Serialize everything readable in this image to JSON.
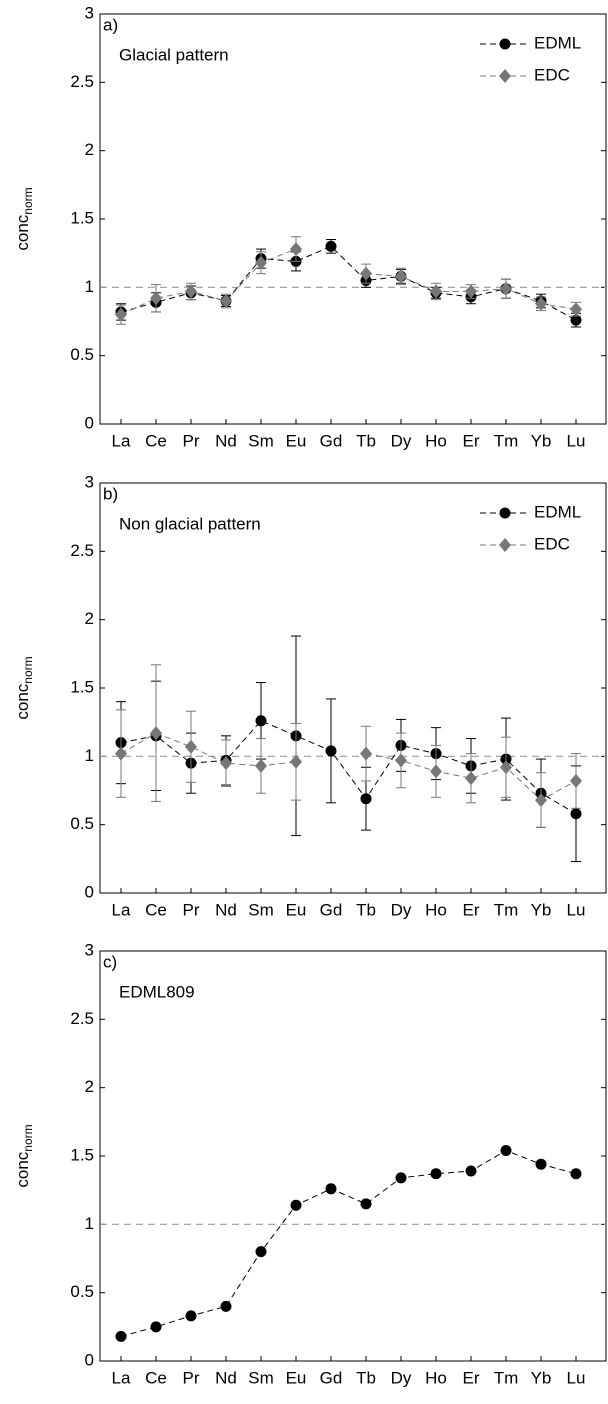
{
  "chart_data": [
    {
      "type": "line",
      "panel_label": "a)",
      "title": "Glacial pattern",
      "ylabel": "conc",
      "ylabel_sub": "norm",
      "categories": [
        "La",
        "Ce",
        "Pr",
        "Nd",
        "Sm",
        "Eu",
        "Gd",
        "Tb",
        "Dy",
        "Ho",
        "Er",
        "Tm",
        "Yb",
        "Lu"
      ],
      "ylim": [
        0,
        3
      ],
      "yticks": [
        0,
        0.5,
        1,
        1.5,
        2,
        2.5,
        3
      ],
      "reference_line": 1,
      "legend": "upper right",
      "series": [
        {
          "name": "EDML",
          "color": "#000000",
          "marker": "circle",
          "values": [
            0.82,
            0.89,
            0.96,
            0.9,
            1.21,
            1.19,
            1.3,
            1.05,
            1.08,
            0.96,
            0.93,
            0.99,
            0.9,
            0.76
          ],
          "errors": [
            0.06,
            0.07,
            0.05,
            0.04,
            0.07,
            0.07,
            0.05,
            0.05,
            0.05,
            0.04,
            0.05,
            0.07,
            0.05,
            0.05
          ]
        },
        {
          "name": "EDC",
          "color": "#777777",
          "marker": "diamond",
          "values": [
            0.8,
            0.92,
            0.97,
            0.9,
            1.18,
            1.28,
            null,
            1.1,
            1.08,
            0.97,
            0.97,
            0.99,
            0.88,
            0.84
          ],
          "errors": [
            0.07,
            0.1,
            0.06,
            0.05,
            0.08,
            0.09,
            null,
            0.07,
            0.06,
            0.06,
            0.05,
            0.07,
            0.05,
            0.05
          ]
        }
      ]
    },
    {
      "type": "line",
      "panel_label": "b)",
      "title": "Non glacial pattern",
      "ylabel": "conc",
      "ylabel_sub": "norm",
      "categories": [
        "La",
        "Ce",
        "Pr",
        "Nd",
        "Sm",
        "Eu",
        "Gd",
        "Tb",
        "Dy",
        "Ho",
        "Er",
        "Tm",
        "Yb",
        "Lu"
      ],
      "ylim": [
        0,
        3
      ],
      "yticks": [
        0,
        0.5,
        1,
        1.5,
        2,
        2.5,
        3
      ],
      "reference_line": 1,
      "legend": "upper right",
      "series": [
        {
          "name": "EDML",
          "color": "#000000",
          "marker": "circle",
          "values": [
            1.1,
            1.15,
            0.95,
            0.97,
            1.26,
            1.15,
            1.04,
            0.69,
            1.08,
            1.02,
            0.93,
            0.98,
            0.73,
            0.58
          ],
          "errors": [
            0.3,
            0.4,
            0.22,
            0.18,
            0.28,
            0.73,
            0.38,
            0.23,
            0.19,
            0.19,
            0.2,
            0.3,
            0.25,
            0.35
          ]
        },
        {
          "name": "EDC",
          "color": "#777777",
          "marker": "diamond",
          "values": [
            1.02,
            1.17,
            1.07,
            0.95,
            0.93,
            0.96,
            null,
            1.02,
            0.97,
            0.89,
            0.84,
            0.92,
            0.68,
            0.82
          ],
          "errors": [
            0.32,
            0.5,
            0.26,
            0.17,
            0.2,
            0.28,
            null,
            0.2,
            0.2,
            0.19,
            0.18,
            0.22,
            0.2,
            0.2
          ]
        }
      ]
    },
    {
      "type": "line",
      "panel_label": "c)",
      "title": "EDML809",
      "ylabel": "conc",
      "ylabel_sub": "norm",
      "categories": [
        "La",
        "Ce",
        "Pr",
        "Nd",
        "Sm",
        "Eu",
        "Gd",
        "Tb",
        "Dy",
        "Ho",
        "Er",
        "Tm",
        "Yb",
        "Lu"
      ],
      "ylim": [
        0,
        3
      ],
      "yticks": [
        0,
        0.5,
        1,
        1.5,
        2,
        2.5,
        3
      ],
      "reference_line": 1,
      "color": "#000000",
      "marker": "circle",
      "values": [
        0.18,
        0.25,
        0.33,
        0.4,
        0.8,
        1.14,
        1.26,
        1.15,
        1.34,
        1.37,
        1.39,
        1.54,
        1.44,
        1.37
      ]
    }
  ]
}
